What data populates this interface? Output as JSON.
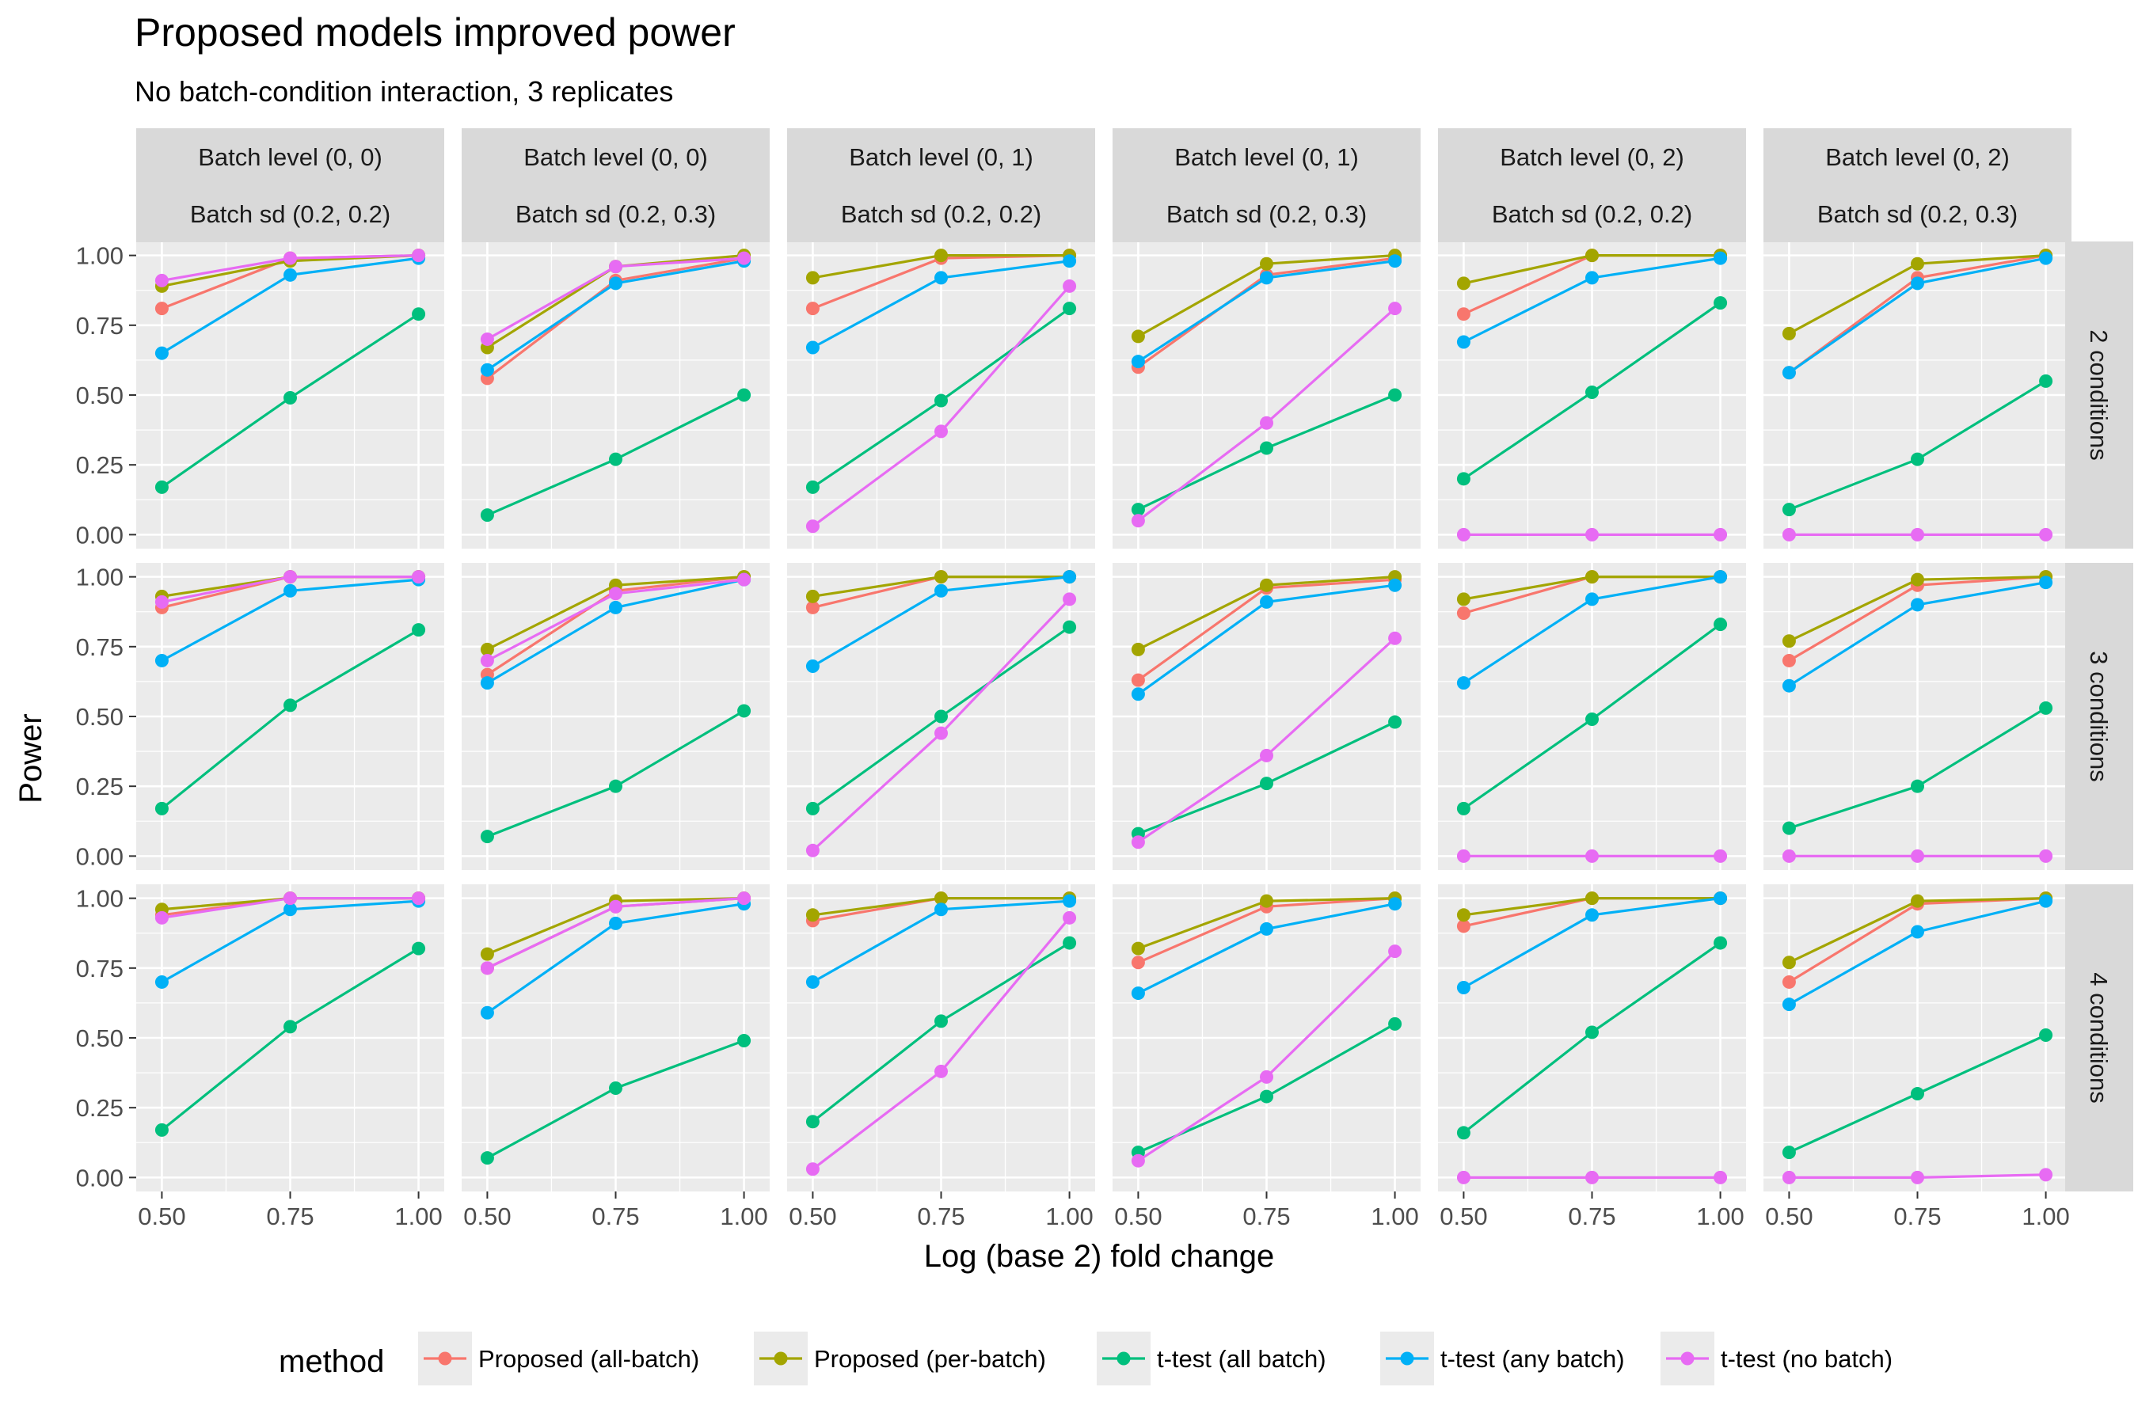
{
  "chart_data": {
    "type": "line",
    "title": "Proposed models improved power",
    "subtitle": "No batch-condition interaction, 3 replicates",
    "xlabel": "Log (base 2) fold change",
    "ylabel": "Power",
    "x": [
      0.5,
      0.75,
      1.0
    ],
    "x_tick_labels": [
      "0.50",
      "0.75",
      "1.00"
    ],
    "y_ticks": [
      0,
      0.25,
      0.5,
      0.75,
      1.0
    ],
    "y_tick_labels": [
      "0.00",
      "0.25",
      "0.50",
      "0.75",
      "1.00"
    ],
    "xlim": [
      0.45,
      1.05
    ],
    "ylim": [
      -0.05,
      1.05
    ],
    "grid": true,
    "legend": {
      "title": "method",
      "position": "bottom",
      "entries": [
        "Proposed (all-batch)",
        "Proposed (per-batch)",
        "t-test (all batch)",
        "t-test (any batch)",
        "t-test (no batch)"
      ]
    },
    "colors": {
      "Proposed (all-batch)": "#F8766D",
      "Proposed (per-batch)": "#A3A500",
      "t-test (all batch)": "#00BF7D",
      "t-test (any batch)": "#00B0F6",
      "t-test (no batch)": "#E76BF3",
      "panel_bg": "#EBEBEB",
      "grid": "#FFFFFF",
      "strip_bg": "#D9D9D9"
    },
    "col_strips": [
      [
        "Batch level (0, 0)",
        "Batch sd (0.2, 0.2)"
      ],
      [
        "Batch level (0, 0)",
        "Batch sd (0.2, 0.3)"
      ],
      [
        "Batch level (0, 1)",
        "Batch sd (0.2, 0.2)"
      ],
      [
        "Batch level (0, 1)",
        "Batch sd (0.2, 0.3)"
      ],
      [
        "Batch level (0, 2)",
        "Batch sd (0.2, 0.2)"
      ],
      [
        "Batch level (0, 2)",
        "Batch sd (0.2, 0.3)"
      ]
    ],
    "row_strips": [
      "2 conditions",
      "3 conditions",
      "4 conditions"
    ],
    "panels": [
      [
        {
          "series": [
            {
              "name": "Proposed (all-batch)",
              "values": [
                0.81,
                0.99,
                1.0
              ]
            },
            {
              "name": "Proposed (per-batch)",
              "values": [
                0.89,
                0.98,
                1.0
              ]
            },
            {
              "name": "t-test (all batch)",
              "values": [
                0.17,
                0.49,
                0.79
              ]
            },
            {
              "name": "t-test (any batch)",
              "values": [
                0.65,
                0.93,
                0.99
              ]
            },
            {
              "name": "t-test (no batch)",
              "values": [
                0.91,
                0.99,
                1.0
              ]
            }
          ]
        },
        {
          "series": [
            {
              "name": "Proposed (all-batch)",
              "values": [
                0.56,
                0.91,
                0.99
              ]
            },
            {
              "name": "Proposed (per-batch)",
              "values": [
                0.67,
                0.96,
                1.0
              ]
            },
            {
              "name": "t-test (all batch)",
              "values": [
                0.07,
                0.27,
                0.5
              ]
            },
            {
              "name": "t-test (any batch)",
              "values": [
                0.59,
                0.9,
                0.98
              ]
            },
            {
              "name": "t-test (no batch)",
              "values": [
                0.7,
                0.96,
                0.99
              ]
            }
          ]
        },
        {
          "series": [
            {
              "name": "Proposed (all-batch)",
              "values": [
                0.81,
                0.99,
                1.0
              ]
            },
            {
              "name": "Proposed (per-batch)",
              "values": [
                0.92,
                1.0,
                1.0
              ]
            },
            {
              "name": "t-test (all batch)",
              "values": [
                0.17,
                0.48,
                0.81
              ]
            },
            {
              "name": "t-test (any batch)",
              "values": [
                0.67,
                0.92,
                0.98
              ]
            },
            {
              "name": "t-test (no batch)",
              "values": [
                0.03,
                0.37,
                0.89
              ]
            }
          ]
        },
        {
          "series": [
            {
              "name": "Proposed (all-batch)",
              "values": [
                0.6,
                0.93,
                0.99
              ]
            },
            {
              "name": "Proposed (per-batch)",
              "values": [
                0.71,
                0.97,
                1.0
              ]
            },
            {
              "name": "t-test (all batch)",
              "values": [
                0.09,
                0.31,
                0.5
              ]
            },
            {
              "name": "t-test (any batch)",
              "values": [
                0.62,
                0.92,
                0.98
              ]
            },
            {
              "name": "t-test (no batch)",
              "values": [
                0.05,
                0.4,
                0.81
              ]
            }
          ]
        },
        {
          "series": [
            {
              "name": "Proposed (all-batch)",
              "values": [
                0.79,
                1.0,
                1.0
              ]
            },
            {
              "name": "Proposed (per-batch)",
              "values": [
                0.9,
                1.0,
                1.0
              ]
            },
            {
              "name": "t-test (all batch)",
              "values": [
                0.2,
                0.51,
                0.83
              ]
            },
            {
              "name": "t-test (any batch)",
              "values": [
                0.69,
                0.92,
                0.99
              ]
            },
            {
              "name": "t-test (no batch)",
              "values": [
                0.0,
                0.0,
                0.0
              ]
            }
          ]
        },
        {
          "series": [
            {
              "name": "Proposed (all-batch)",
              "values": [
                0.58,
                0.92,
                1.0
              ]
            },
            {
              "name": "Proposed (per-batch)",
              "values": [
                0.72,
                0.97,
                1.0
              ]
            },
            {
              "name": "t-test (all batch)",
              "values": [
                0.09,
                0.27,
                0.55
              ]
            },
            {
              "name": "t-test (any batch)",
              "values": [
                0.58,
                0.9,
                0.99
              ]
            },
            {
              "name": "t-test (no batch)",
              "values": [
                0.0,
                0.0,
                0.0
              ]
            }
          ]
        }
      ],
      [
        {
          "series": [
            {
              "name": "Proposed (all-batch)",
              "values": [
                0.89,
                1.0,
                1.0
              ]
            },
            {
              "name": "Proposed (per-batch)",
              "values": [
                0.93,
                1.0,
                1.0
              ]
            },
            {
              "name": "t-test (all batch)",
              "values": [
                0.17,
                0.54,
                0.81
              ]
            },
            {
              "name": "t-test (any batch)",
              "values": [
                0.7,
                0.95,
                0.99
              ]
            },
            {
              "name": "t-test (no batch)",
              "values": [
                0.91,
                1.0,
                1.0
              ]
            }
          ]
        },
        {
          "series": [
            {
              "name": "Proposed (all-batch)",
              "values": [
                0.65,
                0.95,
                1.0
              ]
            },
            {
              "name": "Proposed (per-batch)",
              "values": [
                0.74,
                0.97,
                1.0
              ]
            },
            {
              "name": "t-test (all batch)",
              "values": [
                0.07,
                0.25,
                0.52
              ]
            },
            {
              "name": "t-test (any batch)",
              "values": [
                0.62,
                0.89,
                0.99
              ]
            },
            {
              "name": "t-test (no batch)",
              "values": [
                0.7,
                0.94,
                0.99
              ]
            }
          ]
        },
        {
          "series": [
            {
              "name": "Proposed (all-batch)",
              "values": [
                0.89,
                1.0,
                1.0
              ]
            },
            {
              "name": "Proposed (per-batch)",
              "values": [
                0.93,
                1.0,
                1.0
              ]
            },
            {
              "name": "t-test (all batch)",
              "values": [
                0.17,
                0.5,
                0.82
              ]
            },
            {
              "name": "t-test (any batch)",
              "values": [
                0.68,
                0.95,
                1.0
              ]
            },
            {
              "name": "t-test (no batch)",
              "values": [
                0.02,
                0.44,
                0.92
              ]
            }
          ]
        },
        {
          "series": [
            {
              "name": "Proposed (all-batch)",
              "values": [
                0.63,
                0.96,
                0.99
              ]
            },
            {
              "name": "Proposed (per-batch)",
              "values": [
                0.74,
                0.97,
                1.0
              ]
            },
            {
              "name": "t-test (all batch)",
              "values": [
                0.08,
                0.26,
                0.48
              ]
            },
            {
              "name": "t-test (any batch)",
              "values": [
                0.58,
                0.91,
                0.97
              ]
            },
            {
              "name": "t-test (no batch)",
              "values": [
                0.05,
                0.36,
                0.78
              ]
            }
          ]
        },
        {
          "series": [
            {
              "name": "Proposed (all-batch)",
              "values": [
                0.87,
                1.0,
                1.0
              ]
            },
            {
              "name": "Proposed (per-batch)",
              "values": [
                0.92,
                1.0,
                1.0
              ]
            },
            {
              "name": "t-test (all batch)",
              "values": [
                0.17,
                0.49,
                0.83
              ]
            },
            {
              "name": "t-test (any batch)",
              "values": [
                0.62,
                0.92,
                1.0
              ]
            },
            {
              "name": "t-test (no batch)",
              "values": [
                0.0,
                0.0,
                0.0
              ]
            }
          ]
        },
        {
          "series": [
            {
              "name": "Proposed (all-batch)",
              "values": [
                0.7,
                0.97,
                1.0
              ]
            },
            {
              "name": "Proposed (per-batch)",
              "values": [
                0.77,
                0.99,
                1.0
              ]
            },
            {
              "name": "t-test (all batch)",
              "values": [
                0.1,
                0.25,
                0.53
              ]
            },
            {
              "name": "t-test (any batch)",
              "values": [
                0.61,
                0.9,
                0.98
              ]
            },
            {
              "name": "t-test (no batch)",
              "values": [
                0.0,
                0.0,
                0.0
              ]
            }
          ]
        }
      ],
      [
        {
          "series": [
            {
              "name": "Proposed (all-batch)",
              "values": [
                0.94,
                1.0,
                1.0
              ]
            },
            {
              "name": "Proposed (per-batch)",
              "values": [
                0.96,
                1.0,
                1.0
              ]
            },
            {
              "name": "t-test (all batch)",
              "values": [
                0.17,
                0.54,
                0.82
              ]
            },
            {
              "name": "t-test (any batch)",
              "values": [
                0.7,
                0.96,
                0.99
              ]
            },
            {
              "name": "t-test (no batch)",
              "values": [
                0.93,
                1.0,
                1.0
              ]
            }
          ]
        },
        {
          "series": [
            {
              "name": "Proposed (all-batch)",
              "values": [
                0.75,
                0.97,
                1.0
              ]
            },
            {
              "name": "Proposed (per-batch)",
              "values": [
                0.8,
                0.99,
                1.0
              ]
            },
            {
              "name": "t-test (all batch)",
              "values": [
                0.07,
                0.32,
                0.49
              ]
            },
            {
              "name": "t-test (any batch)",
              "values": [
                0.59,
                0.91,
                0.98
              ]
            },
            {
              "name": "t-test (no batch)",
              "values": [
                0.75,
                0.97,
                1.0
              ]
            }
          ]
        },
        {
          "series": [
            {
              "name": "Proposed (all-batch)",
              "values": [
                0.92,
                1.0,
                1.0
              ]
            },
            {
              "name": "Proposed (per-batch)",
              "values": [
                0.94,
                1.0,
                1.0
              ]
            },
            {
              "name": "t-test (all batch)",
              "values": [
                0.2,
                0.56,
                0.84
              ]
            },
            {
              "name": "t-test (any batch)",
              "values": [
                0.7,
                0.96,
                0.99
              ]
            },
            {
              "name": "t-test (no batch)",
              "values": [
                0.03,
                0.38,
                0.93
              ]
            }
          ]
        },
        {
          "series": [
            {
              "name": "Proposed (all-batch)",
              "values": [
                0.77,
                0.97,
                1.0
              ]
            },
            {
              "name": "Proposed (per-batch)",
              "values": [
                0.82,
                0.99,
                1.0
              ]
            },
            {
              "name": "t-test (all batch)",
              "values": [
                0.09,
                0.29,
                0.55
              ]
            },
            {
              "name": "t-test (any batch)",
              "values": [
                0.66,
                0.89,
                0.98
              ]
            },
            {
              "name": "t-test (no batch)",
              "values": [
                0.06,
                0.36,
                0.81
              ]
            }
          ]
        },
        {
          "series": [
            {
              "name": "Proposed (all-batch)",
              "values": [
                0.9,
                1.0,
                1.0
              ]
            },
            {
              "name": "Proposed (per-batch)",
              "values": [
                0.94,
                1.0,
                1.0
              ]
            },
            {
              "name": "t-test (all batch)",
              "values": [
                0.16,
                0.52,
                0.84
              ]
            },
            {
              "name": "t-test (any batch)",
              "values": [
                0.68,
                0.94,
                1.0
              ]
            },
            {
              "name": "t-test (no batch)",
              "values": [
                0.0,
                0.0,
                0.0
              ]
            }
          ]
        },
        {
          "series": [
            {
              "name": "Proposed (all-batch)",
              "values": [
                0.7,
                0.98,
                1.0
              ]
            },
            {
              "name": "Proposed (per-batch)",
              "values": [
                0.77,
                0.99,
                1.0
              ]
            },
            {
              "name": "t-test (all batch)",
              "values": [
                0.09,
                0.3,
                0.51
              ]
            },
            {
              "name": "t-test (any batch)",
              "values": [
                0.62,
                0.88,
                0.99
              ]
            },
            {
              "name": "t-test (no batch)",
              "values": [
                0.0,
                0.0,
                0.01
              ]
            }
          ]
        }
      ]
    ]
  }
}
